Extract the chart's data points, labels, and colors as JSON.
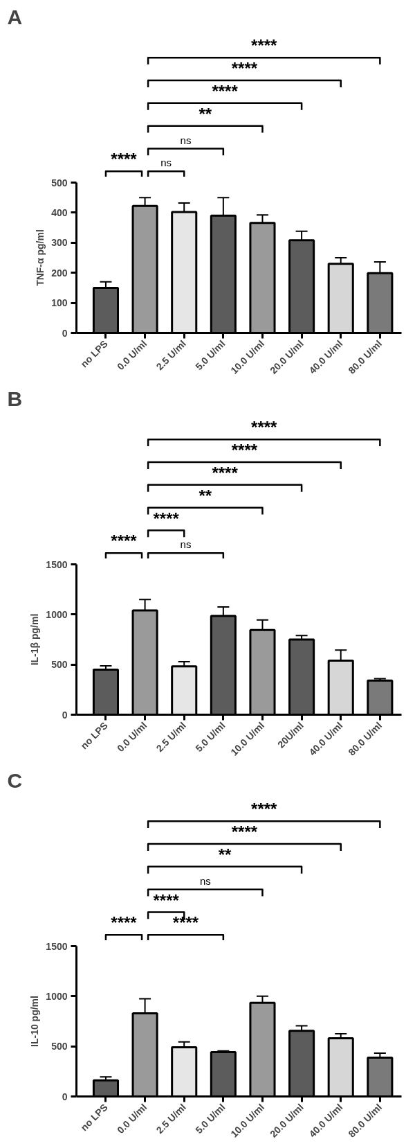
{
  "chart_data": [
    {
      "type": "bar",
      "title": "A",
      "ylabel": "TNF-α pg/ml",
      "categories": [
        "no LPS",
        "0.0 U/ml",
        "2.5 U/ml",
        "5.0 U/ml",
        "10.0 U/ml",
        "20.0 U/ml",
        "40.0 U/ml",
        "80.0 U/ml"
      ],
      "values": [
        150,
        422,
        402,
        390,
        366,
        308,
        230,
        199
      ],
      "errors": [
        [
          150,
          170
        ],
        [
          422,
          450
        ],
        [
          402,
          432
        ],
        [
          390,
          450
        ],
        [
          366,
          392
        ],
        [
          308,
          338
        ],
        [
          230,
          250
        ],
        [
          199,
          236
        ]
      ],
      "colors": [
        "#5c5c5c",
        "#9a9a9a",
        "#e6e6e6",
        "#5c5c5c",
        "#9a9a9a",
        "#5c5c5c",
        "#d6d6d6",
        "#7a7a7a"
      ],
      "ylim": [
        0,
        500
      ],
      "yticks": [
        0,
        100,
        200,
        300,
        400,
        500
      ],
      "annotations": [
        "****",
        "****",
        "****",
        "**",
        "ns",
        "****",
        "ns"
      ]
    },
    {
      "type": "bar",
      "title": "B",
      "ylabel": "IL-1β pg/ml",
      "categories": [
        "no LPS",
        "0.0 U/ml",
        "2.5 U/ml",
        "5.0 U/ml",
        "10.0 U/ml",
        "20U/ml",
        "40.0 U/ml",
        "80.0 U/ml"
      ],
      "values": [
        450,
        1040,
        483,
        985,
        845,
        750,
        540,
        340
      ],
      "errors": [
        [
          450,
          488
        ],
        [
          1040,
          1150
        ],
        [
          483,
          528
        ],
        [
          985,
          1075
        ],
        [
          845,
          945
        ],
        [
          750,
          790
        ],
        [
          540,
          645
        ],
        [
          340,
          360
        ]
      ],
      "colors": [
        "#5c5c5c",
        "#9a9a9a",
        "#e6e6e6",
        "#5c5c5c",
        "#9a9a9a",
        "#5c5c5c",
        "#d6d6d6",
        "#7a7a7a"
      ],
      "ylim": [
        0,
        1500
      ],
      "yticks": [
        0,
        500,
        1000,
        1500
      ],
      "annotations": [
        "****",
        "****",
        "****",
        "**",
        "****",
        "****",
        "ns"
      ]
    },
    {
      "type": "bar",
      "title": "C",
      "ylabel": "IL-10 pg/ml",
      "categories": [
        "no LPS",
        "0.0 U/ml",
        "2.5 U/ml",
        "5.0 U/ml",
        "10.0 U/ml",
        "20.0 U/ml",
        "40.0 U/ml",
        "80.0 U/ml"
      ],
      "values": [
        160,
        830,
        490,
        443,
        935,
        655,
        580,
        387
      ],
      "errors": [
        [
          160,
          195
        ],
        [
          830,
          975
        ],
        [
          490,
          545
        ],
        [
          443,
          455
        ],
        [
          935,
          1000
        ],
        [
          655,
          705
        ],
        [
          580,
          625
        ],
        [
          387,
          432
        ]
      ],
      "colors": [
        "#5c5c5c",
        "#9a9a9a",
        "#e6e6e6",
        "#5c5c5c",
        "#9a9a9a",
        "#5c5c5c",
        "#d6d6d6",
        "#7a7a7a"
      ],
      "ylim": [
        0,
        1500
      ],
      "yticks": [
        0,
        500,
        1000,
        1500
      ],
      "annotations": [
        "****",
        "****",
        "**",
        "ns",
        "****",
        "****",
        "****"
      ]
    }
  ]
}
